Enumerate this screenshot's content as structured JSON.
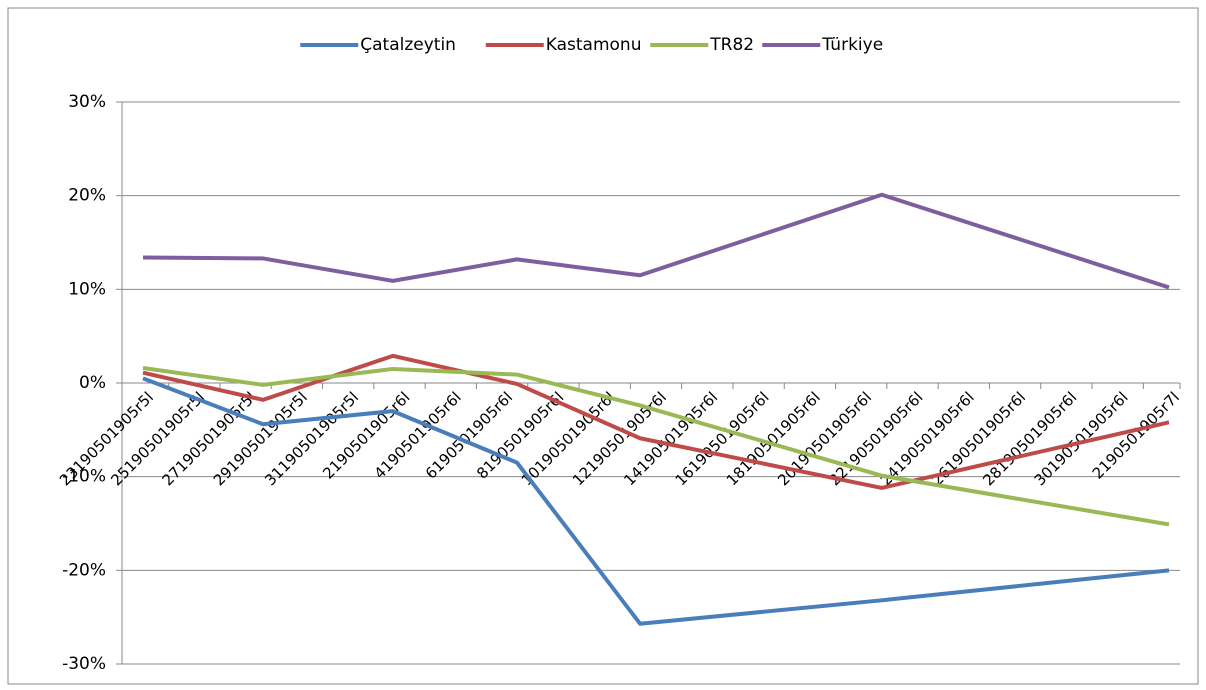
{
  "chart_data": {
    "type": "line",
    "categories": [
      "23190501905r5l",
      "25190501905r5l",
      "27190501905r5l",
      "29190501905r5l",
      "31190501905r5l",
      "2190501905r6l",
      "4190501905r6l",
      "6190501905r6l",
      "8190501905r6l",
      "10190501905r6l",
      "12190501905r6l",
      "14190501905r6l",
      "16190501905r6l",
      "18190501905r6l",
      "20190501905r6l",
      "22190501905r6l",
      "24190501905r6l",
      "26190501905r6l",
      "28190501905r6l",
      "30190501905r6l",
      "2190501905r7l"
    ],
    "x": [
      0,
      2.34,
      4.87,
      7.29,
      9.69,
      14.4,
      20
    ],
    "series": [
      {
        "name": "Çatalzeytin",
        "color": "#4a7ebb",
        "values": [
          0.5,
          -4.4,
          -3.0,
          -8.5,
          -25.7,
          -23.2,
          -20.0
        ]
      },
      {
        "name": "Kastamonu",
        "color": "#be4b48",
        "values": [
          1.1,
          -1.8,
          2.9,
          -0.1,
          -5.9,
          -11.2,
          -4.2
        ]
      },
      {
        "name": "TR82",
        "color": "#98b954",
        "values": [
          1.6,
          -0.2,
          1.5,
          0.9,
          -2.4,
          -9.9,
          -15.1
        ]
      },
      {
        "name": "Türkiye",
        "color": "#7d5fa0",
        "values": [
          13.4,
          13.3,
          10.9,
          13.2,
          11.5,
          20.1,
          10.2
        ]
      }
    ],
    "ylim": [
      -30,
      30
    ],
    "yticks": [
      {
        "value": -30,
        "label": "-30%"
      },
      {
        "value": -20,
        "label": "-20%"
      },
      {
        "value": -10,
        "label": "-10%"
      },
      {
        "value": 0,
        "label": "0%"
      },
      {
        "value": 10,
        "label": "10%"
      },
      {
        "value": 20,
        "label": "20%"
      },
      {
        "value": 30,
        "label": "30%"
      }
    ],
    "grid": true,
    "legend": "top"
  }
}
